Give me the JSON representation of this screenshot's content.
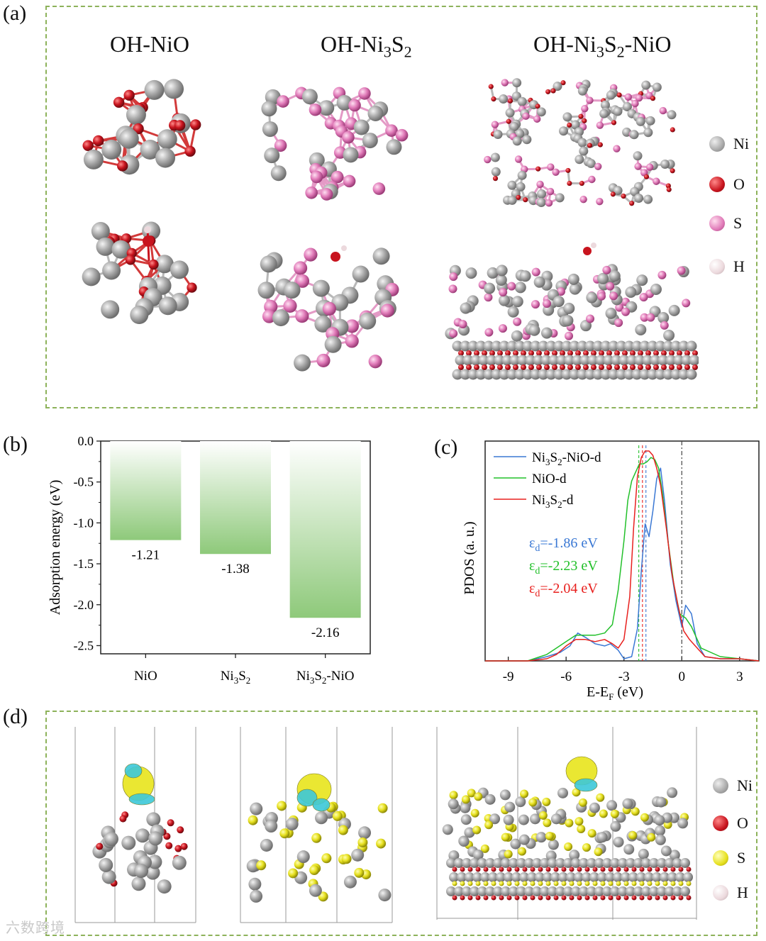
{
  "panel_labels": {
    "a": "(a)",
    "b": "(b)",
    "c": "(c)",
    "d": "(d)"
  },
  "panel_a": {
    "titles": {
      "nio": "OH-NiO",
      "ni3s2": {
        "pre": "OH-Ni",
        "sub1": "3",
        "mid": "S",
        "sub2": "2",
        "post": ""
      },
      "hetero": {
        "pre": "OH-Ni",
        "sub1": "3",
        "mid": "S",
        "sub2": "2",
        "post": "-NiO"
      }
    },
    "legend": [
      {
        "label": "Ni",
        "color": "#a8a8a8"
      },
      {
        "label": "O",
        "color": "#c8141e"
      },
      {
        "label": "S",
        "color": "#e07ab8"
      },
      {
        "label": "H",
        "color": "#ecd9dd"
      }
    ]
  },
  "panel_d": {
    "legend": [
      {
        "label": "Ni",
        "color": "#a8a8a8"
      },
      {
        "label": "O",
        "color": "#c8141e"
      },
      {
        "label": "S",
        "color": "#e6e01e"
      },
      {
        "label": "H",
        "color": "#ecd9dd"
      }
    ]
  },
  "chart_data": [
    {
      "type": "bar",
      "panel": "b",
      "categories": [
        "NiO",
        "Ni3S2",
        "Ni3S2-NiO"
      ],
      "values": [
        -1.21,
        -1.38,
        -2.16
      ],
      "value_labels": [
        "-1.21",
        "-1.38",
        "-2.16"
      ],
      "ylabel": "Adsorption energy (eV)",
      "ylim": [
        -2.6,
        0.0
      ],
      "yticks": [
        "0.0",
        "-0.5",
        "-1.0",
        "-1.5",
        "-2.0",
        "-2.5"
      ],
      "bar_color": "#8ec97a"
    },
    {
      "type": "line",
      "panel": "c",
      "xlabel": "E-E_F (eV)",
      "ylabel": "PDOS (a. u.)",
      "xlim": [
        -10.2,
        4
      ],
      "ylim": [
        0,
        1.0
      ],
      "xticks": [
        "-9",
        "-6",
        "-3",
        "0",
        "3"
      ],
      "fermi_level": 0,
      "series": [
        {
          "name": "Ni3S2-NiO-d",
          "color": "#3a78d4",
          "x": [
            -10.2,
            -8,
            -7,
            -6.3,
            -5.8,
            -5.4,
            -5.0,
            -4.5,
            -4.0,
            -3.7,
            -3.3,
            -3.0,
            -2.6,
            -2.3,
            -2.1,
            -1.9,
            -1.7,
            -1.5,
            -1.3,
            -1.1,
            -0.9,
            -0.6,
            -0.3,
            0,
            0.2,
            0.5,
            0.8,
            1.2,
            2.0,
            3.0,
            4.0
          ],
          "y": [
            0.0,
            0.0,
            0.02,
            0.04,
            0.07,
            0.13,
            0.11,
            0.08,
            0.07,
            0.08,
            0.05,
            0.01,
            0.02,
            0.15,
            0.42,
            0.64,
            0.58,
            0.7,
            0.85,
            0.9,
            0.75,
            0.45,
            0.28,
            0.16,
            0.26,
            0.22,
            0.08,
            0.02,
            0.01,
            0.01,
            0.0
          ]
        },
        {
          "name": "NiO-d",
          "color": "#22c02a",
          "x": [
            -10.2,
            -8,
            -7,
            -6.5,
            -6.0,
            -5.5,
            -5.0,
            -4.5,
            -4.0,
            -3.6,
            -3.3,
            -3.0,
            -2.8,
            -2.6,
            -2.4,
            -2.2,
            -2.0,
            -1.8,
            -1.6,
            -1.4,
            -1.2,
            -1.0,
            -0.7,
            -0.4,
            -0.1,
            0.2,
            0.5,
            1.0,
            2.0,
            3.0,
            4.0
          ],
          "y": [
            0.0,
            0.0,
            0.03,
            0.06,
            0.09,
            0.12,
            0.12,
            0.12,
            0.13,
            0.17,
            0.33,
            0.56,
            0.75,
            0.84,
            0.88,
            0.92,
            0.92,
            0.93,
            0.95,
            0.94,
            0.9,
            0.78,
            0.55,
            0.35,
            0.22,
            0.2,
            0.16,
            0.06,
            0.02,
            0.01,
            0.0
          ]
        },
        {
          "name": "Ni3S2-d",
          "color": "#e8201e",
          "x": [
            -10.2,
            -8,
            -7,
            -6.5,
            -6.0,
            -5.5,
            -5.0,
            -4.5,
            -4.0,
            -3.6,
            -3.3,
            -3.0,
            -2.7,
            -2.5,
            -2.3,
            -2.1,
            -1.9,
            -1.7,
            -1.5,
            -1.3,
            -1.1,
            -0.8,
            -0.5,
            -0.2,
            0.1,
            0.4,
            0.8,
            1.2,
            2.0,
            3.0,
            4.0
          ],
          "y": [
            0.0,
            0.0,
            0.01,
            0.03,
            0.07,
            0.1,
            0.1,
            0.09,
            0.1,
            0.08,
            0.06,
            0.1,
            0.3,
            0.62,
            0.86,
            0.95,
            0.98,
            0.98,
            0.96,
            0.9,
            0.82,
            0.62,
            0.4,
            0.26,
            0.14,
            0.1,
            0.06,
            0.02,
            0.01,
            0.01,
            0.0
          ]
        }
      ],
      "d_band_centers": [
        {
          "label": "εd=-1.86 eV",
          "value": -1.86,
          "color": "#3a78d4"
        },
        {
          "label": "εd=-2.23 eV",
          "value": -2.23,
          "color": "#22c02a"
        },
        {
          "label": "εd=-2.04 eV",
          "value": -2.04,
          "color": "#e8201e"
        }
      ]
    }
  ],
  "watermark": "六数跨境"
}
